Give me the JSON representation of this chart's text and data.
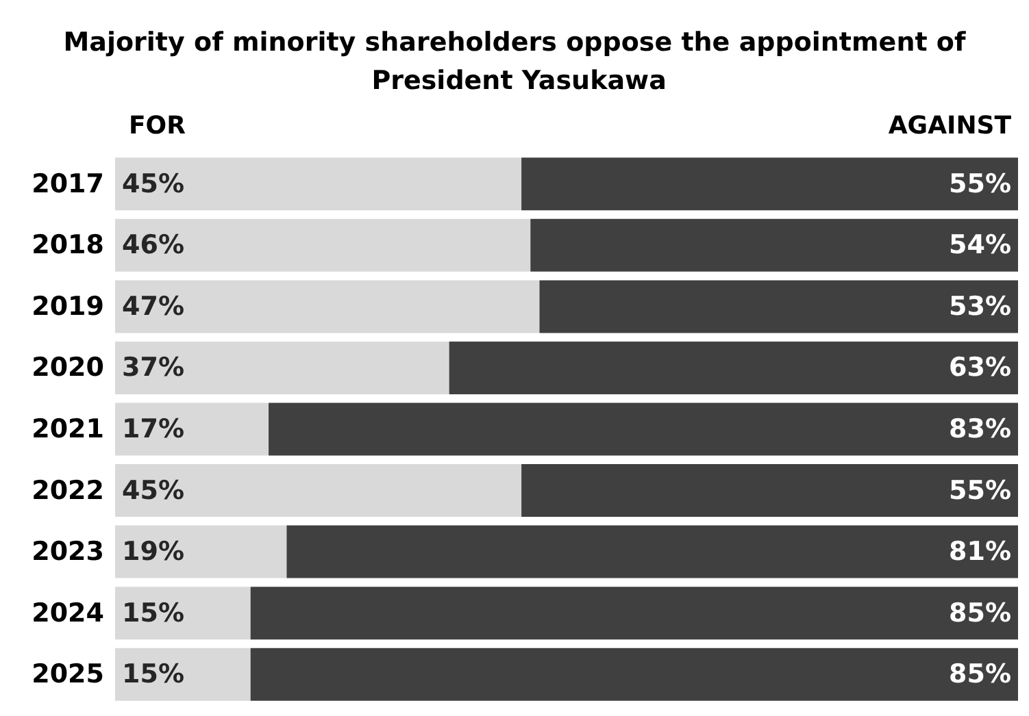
{
  "chart_data": {
    "type": "bar",
    "title": "Majority of minority shareholders oppose the appointment of President Yasukawa",
    "orientation": "horizontal",
    "stacked": true,
    "categories": [
      "2017",
      "2018",
      "2019",
      "2020",
      "2021",
      "2022",
      "2023",
      "2024",
      "2025"
    ],
    "series": [
      {
        "name": "FOR",
        "color": "#d9d9d9",
        "values": [
          45,
          46,
          47,
          37,
          17,
          45,
          19,
          15,
          15
        ],
        "value_labels": [
          "45%",
          "46%",
          "47%",
          "37%",
          "17%",
          "45%",
          "19%",
          "15%",
          "15%"
        ]
      },
      {
        "name": "AGAINST",
        "color": "#404040",
        "values": [
          55,
          54,
          53,
          63,
          83,
          55,
          81,
          85,
          85
        ],
        "value_labels": [
          "55%",
          "54%",
          "53%",
          "63%",
          "83%",
          "55%",
          "81%",
          "85%",
          "85%"
        ]
      }
    ],
    "xlim": [
      0,
      100
    ],
    "tick_labels": "y",
    "legend": "top"
  }
}
